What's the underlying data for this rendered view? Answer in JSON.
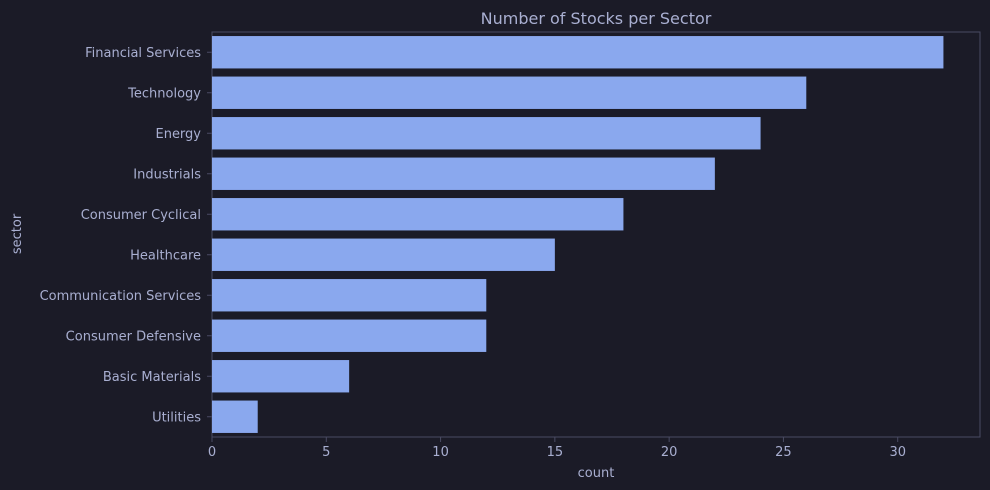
{
  "colors": {
    "background": "#1b1b27",
    "bar": "#8aa8ee",
    "text": "#a9afd1",
    "axis": "#4a4b63"
  },
  "chart_data": {
    "type": "bar",
    "orientation": "horizontal",
    "title": "Number of Stocks per Sector",
    "xlabel": "count",
    "ylabel": "sector",
    "categories": [
      "Financial Services",
      "Technology",
      "Energy",
      "Industrials",
      "Consumer Cyclical",
      "Healthcare",
      "Communication Services",
      "Consumer Defensive",
      "Basic Materials",
      "Utilities"
    ],
    "values": [
      32,
      26,
      24,
      22,
      18,
      15,
      12,
      12,
      6,
      2
    ],
    "xlim": [
      0,
      33.6
    ],
    "xticks": [
      0,
      5,
      10,
      15,
      20,
      25,
      30
    ],
    "grid": false,
    "legend": "none"
  }
}
